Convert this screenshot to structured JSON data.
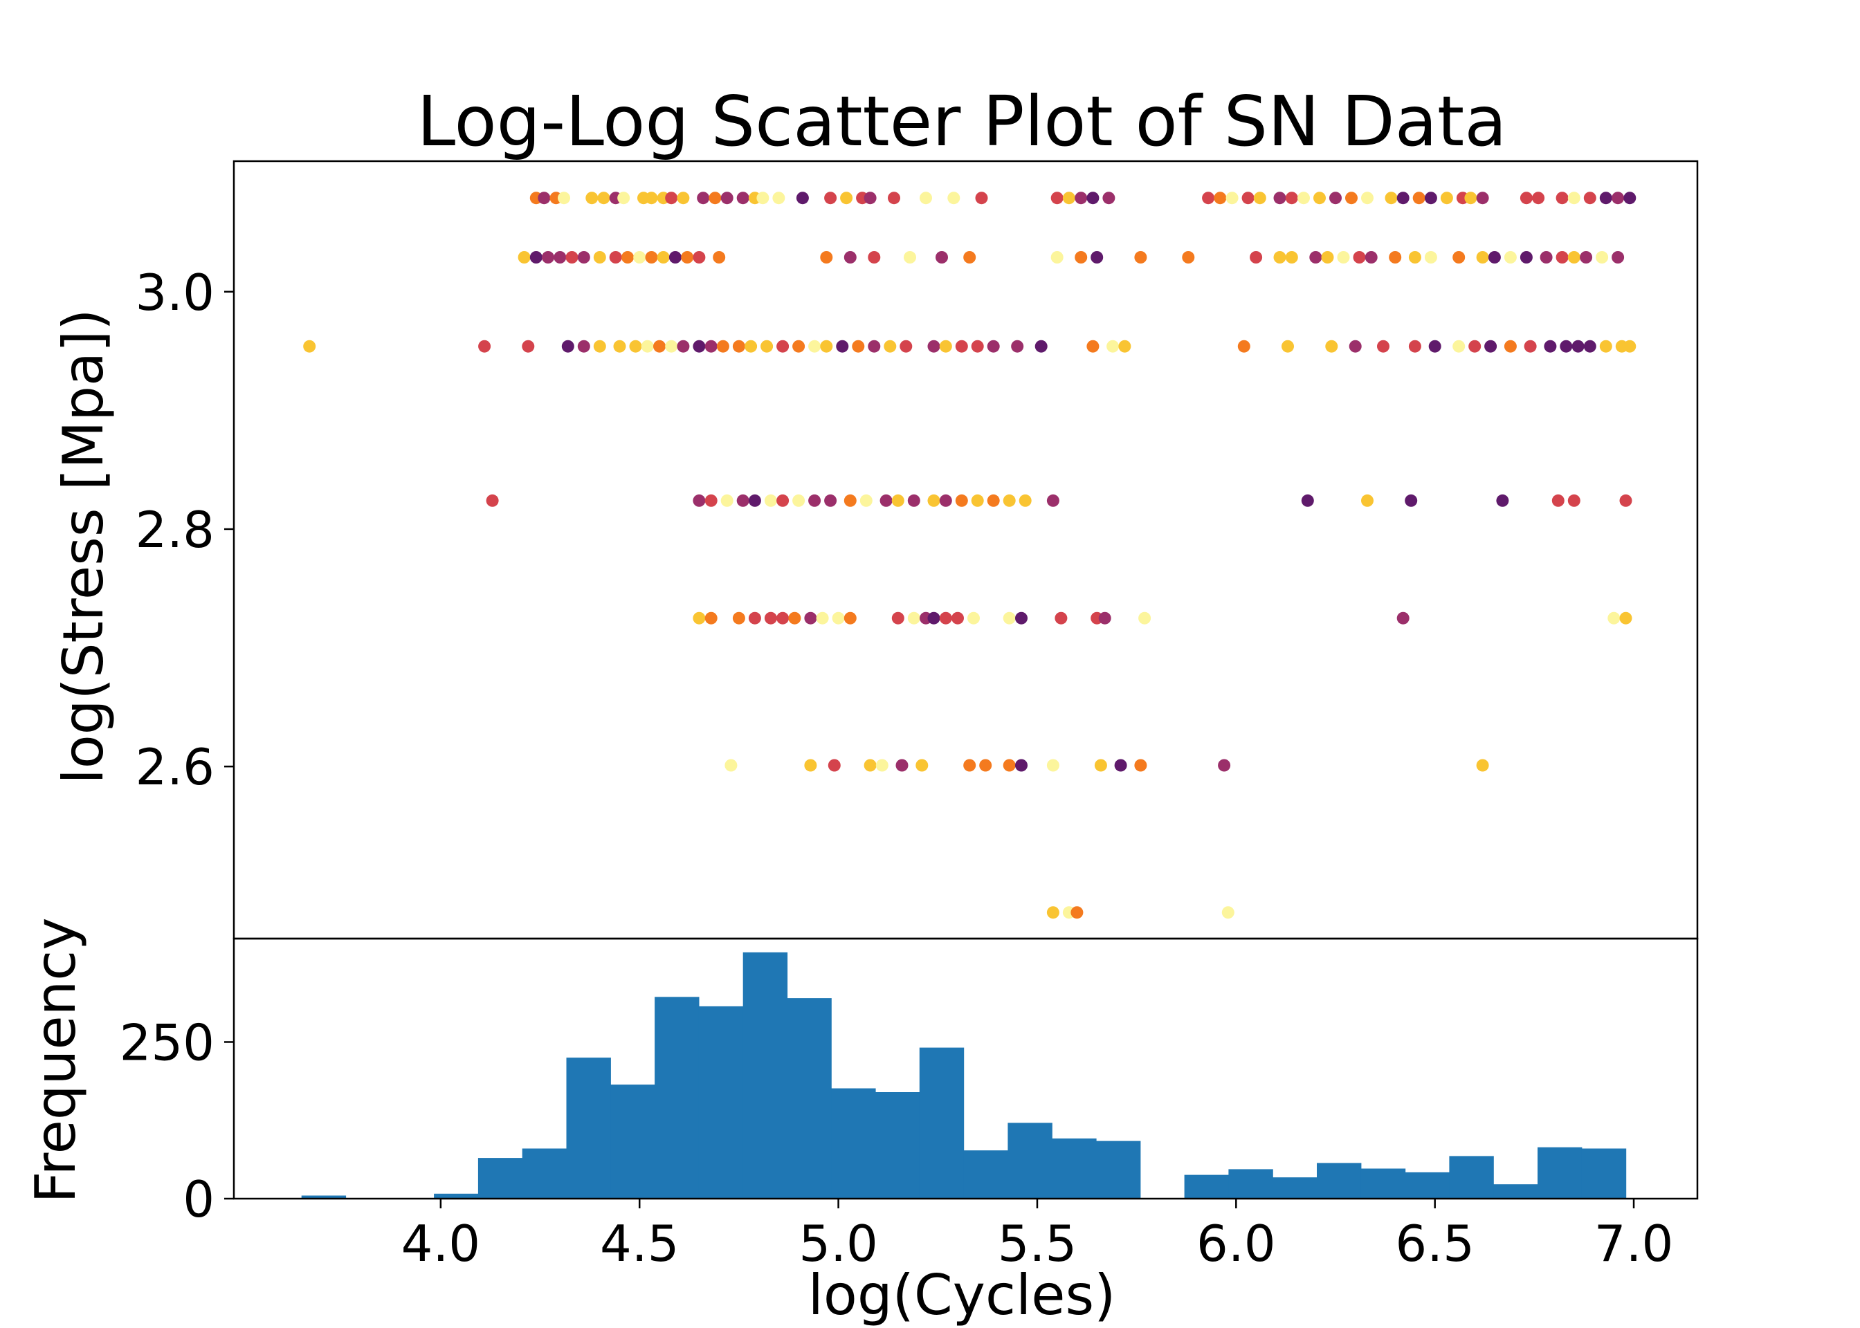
{
  "chart_data": [
    {
      "type": "scatter",
      "title": "Log-Log Scatter Plot of SN Data",
      "xlabel": "",
      "ylabel": "log(Stress [Mpa])",
      "xlim": [
        3.48,
        7.16
      ],
      "ylim": [
        2.455,
        3.11
      ],
      "yticks": [
        2.6,
        2.8,
        3.0
      ],
      "ytick_labels": [
        "2.6",
        "2.8",
        "3.0"
      ],
      "grid": false,
      "colormap": [
        "#5f1a6b",
        "#9b2f6a",
        "#d4434c",
        "#f47a1e",
        "#f9c432",
        "#fcf59c"
      ],
      "point_groups": [
        {
          "y": 3.079,
          "x": [
            4.24,
            4.26,
            4.29,
            4.31,
            4.38,
            4.41,
            4.44,
            4.46,
            4.51,
            4.53,
            4.56,
            4.58,
            4.61,
            4.66,
            4.69,
            4.72,
            4.76,
            4.79,
            4.81,
            4.85,
            4.91,
            4.98,
            5.02,
            5.06,
            5.08,
            5.14,
            5.22,
            5.29,
            5.36,
            5.55,
            5.58,
            5.61,
            5.64,
            5.68,
            5.93,
            5.96,
            5.99,
            6.03,
            6.06,
            6.11,
            6.14,
            6.17,
            6.21,
            6.25,
            6.29,
            6.33,
            6.39,
            6.42,
            6.46,
            6.49,
            6.53,
            6.57,
            6.59,
            6.62,
            6.73,
            6.76,
            6.82,
            6.85,
            6.89,
            6.93,
            6.96,
            6.99
          ]
        },
        {
          "y": 3.029,
          "x": [
            4.21,
            4.24,
            4.27,
            4.3,
            4.33,
            4.36,
            4.4,
            4.44,
            4.47,
            4.5,
            4.53,
            4.56,
            4.59,
            4.62,
            4.65,
            4.7,
            4.97,
            5.03,
            5.09,
            5.18,
            5.26,
            5.33,
            5.55,
            5.61,
            5.65,
            5.76,
            5.88,
            6.05,
            6.11,
            6.14,
            6.2,
            6.23,
            6.27,
            6.31,
            6.34,
            6.4,
            6.45,
            6.49,
            6.56,
            6.62,
            6.65,
            6.69,
            6.73,
            6.78,
            6.82,
            6.85,
            6.88,
            6.92,
            6.96
          ]
        },
        {
          "y": 2.954,
          "x": [
            3.67,
            4.11,
            4.22,
            4.32,
            4.36,
            4.4,
            4.45,
            4.49,
            4.52,
            4.55,
            4.58,
            4.61,
            4.65,
            4.68,
            4.71,
            4.75,
            4.78,
            4.82,
            4.86,
            4.9,
            4.94,
            4.97,
            5.01,
            5.05,
            5.09,
            5.13,
            5.17,
            5.24,
            5.27,
            5.31,
            5.35,
            5.39,
            5.45,
            5.51,
            5.64,
            5.69,
            5.72,
            6.02,
            6.13,
            6.24,
            6.3,
            6.37,
            6.45,
            6.5,
            6.56,
            6.6,
            6.64,
            6.69,
            6.74,
            6.79,
            6.83,
            6.86,
            6.89,
            6.93,
            6.97,
            6.99
          ]
        },
        {
          "y": 2.824,
          "x": [
            4.13,
            4.65,
            4.68,
            4.72,
            4.76,
            4.79,
            4.83,
            4.86,
            4.9,
            4.94,
            4.98,
            5.03,
            5.07,
            5.12,
            5.15,
            5.19,
            5.24,
            5.27,
            5.31,
            5.35,
            5.39,
            5.43,
            5.47,
            5.54,
            6.18,
            6.33,
            6.44,
            6.67,
            6.81,
            6.85,
            6.98
          ]
        },
        {
          "y": 2.725,
          "x": [
            4.65,
            4.68,
            4.75,
            4.79,
            4.83,
            4.86,
            4.89,
            4.93,
            4.96,
            5.0,
            5.03,
            5.15,
            5.19,
            5.22,
            5.24,
            5.27,
            5.3,
            5.34,
            5.43,
            5.46,
            5.56,
            5.65,
            5.67,
            5.77,
            6.42,
            6.95,
            6.98
          ]
        },
        {
          "y": 2.601,
          "x": [
            4.73,
            4.93,
            4.99,
            5.08,
            5.11,
            5.16,
            5.21,
            5.33,
            5.37,
            5.43,
            5.46,
            5.54,
            5.66,
            5.71,
            5.76,
            5.97,
            6.62
          ]
        },
        {
          "y": 2.477,
          "x": [
            5.54,
            5.58,
            5.6,
            5.98
          ]
        }
      ]
    },
    {
      "type": "bar",
      "title": "",
      "xlabel": "log(Cycles)",
      "ylabel": "Frequency",
      "xlim": [
        3.48,
        7.16
      ],
      "ylim": [
        0,
        415
      ],
      "xticks": [
        4.0,
        4.5,
        5.0,
        5.5,
        6.0,
        6.5,
        7.0
      ],
      "xtick_labels": [
        "4.0",
        "4.5",
        "5.0",
        "5.5",
        "6.0",
        "6.5",
        "7.0"
      ],
      "yticks": [
        0,
        250
      ],
      "ytick_labels": [
        "0",
        "250"
      ],
      "color": "#1f77b4",
      "bin_edges": [
        3.65,
        3.761,
        3.872,
        3.983,
        4.094,
        4.205,
        4.316,
        4.427,
        4.538,
        4.649,
        4.76,
        4.871,
        4.982,
        5.093,
        5.204,
        5.315,
        5.426,
        5.537,
        5.648,
        5.759,
        5.87,
        5.981,
        6.092,
        6.203,
        6.314,
        6.425,
        6.536,
        6.647,
        6.758,
        6.869,
        6.98
      ],
      "values": [
        5,
        0,
        0,
        8,
        65,
        80,
        225,
        182,
        322,
        307,
        393,
        320,
        176,
        170,
        241,
        77,
        121,
        96,
        92,
        0,
        38,
        47,
        34,
        57,
        48,
        42,
        68,
        23,
        82,
        80
      ]
    }
  ]
}
